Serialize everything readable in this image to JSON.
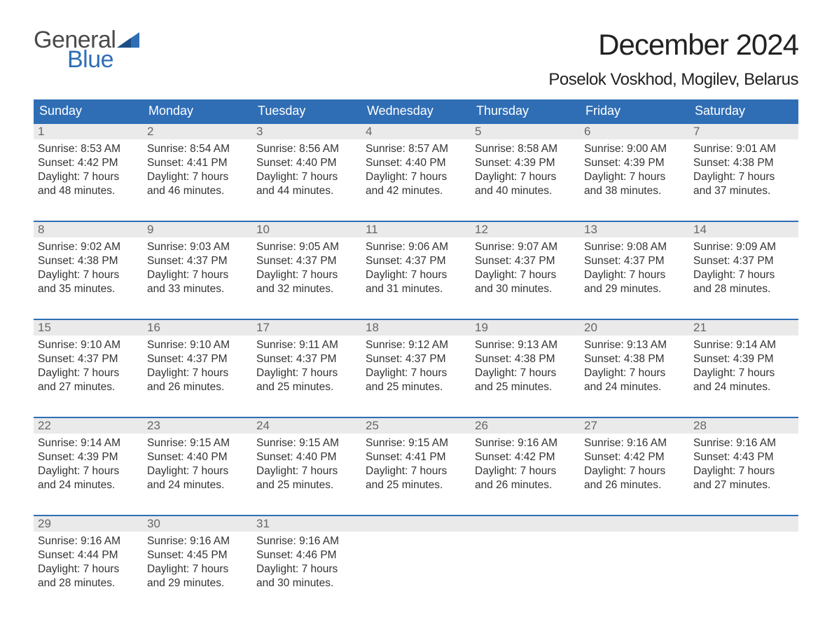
{
  "colors": {
    "brand_blue": "#2f6eb5",
    "header_bg": "#2f6eb5",
    "header_text": "#ffffff",
    "daynum_bg": "#eaeaea",
    "daynum_text": "#666666",
    "body_text": "#333333",
    "page_bg": "#ffffff",
    "logo_gray": "#4a4a4a"
  },
  "typography": {
    "title_fontsize": 42,
    "location_fontsize": 24,
    "dow_fontsize": 18,
    "daynum_fontsize": 17,
    "body_fontsize": 15.5,
    "logo_fontsize": 34
  },
  "logo": {
    "line1": "General",
    "line2": "Blue"
  },
  "title": "December 2024",
  "location": "Poselok Voskhod, Mogilev, Belarus",
  "days_of_week": [
    "Sunday",
    "Monday",
    "Tuesday",
    "Wednesday",
    "Thursday",
    "Friday",
    "Saturday"
  ],
  "labels": {
    "sunrise": "Sunrise:",
    "sunset": "Sunset:",
    "daylight": "Daylight:",
    "hours": "hours",
    "minutes_suffix": "minutes."
  },
  "weeks": [
    [
      {
        "n": "1",
        "sr": "8:53 AM",
        "ss": "4:42 PM",
        "dh": "7",
        "dm": "48"
      },
      {
        "n": "2",
        "sr": "8:54 AM",
        "ss": "4:41 PM",
        "dh": "7",
        "dm": "46"
      },
      {
        "n": "3",
        "sr": "8:56 AM",
        "ss": "4:40 PM",
        "dh": "7",
        "dm": "44"
      },
      {
        "n": "4",
        "sr": "8:57 AM",
        "ss": "4:40 PM",
        "dh": "7",
        "dm": "42"
      },
      {
        "n": "5",
        "sr": "8:58 AM",
        "ss": "4:39 PM",
        "dh": "7",
        "dm": "40"
      },
      {
        "n": "6",
        "sr": "9:00 AM",
        "ss": "4:39 PM",
        "dh": "7",
        "dm": "38"
      },
      {
        "n": "7",
        "sr": "9:01 AM",
        "ss": "4:38 PM",
        "dh": "7",
        "dm": "37"
      }
    ],
    [
      {
        "n": "8",
        "sr": "9:02 AM",
        "ss": "4:38 PM",
        "dh": "7",
        "dm": "35"
      },
      {
        "n": "9",
        "sr": "9:03 AM",
        "ss": "4:37 PM",
        "dh": "7",
        "dm": "33"
      },
      {
        "n": "10",
        "sr": "9:05 AM",
        "ss": "4:37 PM",
        "dh": "7",
        "dm": "32"
      },
      {
        "n": "11",
        "sr": "9:06 AM",
        "ss": "4:37 PM",
        "dh": "7",
        "dm": "31"
      },
      {
        "n": "12",
        "sr": "9:07 AM",
        "ss": "4:37 PM",
        "dh": "7",
        "dm": "30"
      },
      {
        "n": "13",
        "sr": "9:08 AM",
        "ss": "4:37 PM",
        "dh": "7",
        "dm": "29"
      },
      {
        "n": "14",
        "sr": "9:09 AM",
        "ss": "4:37 PM",
        "dh": "7",
        "dm": "28"
      }
    ],
    [
      {
        "n": "15",
        "sr": "9:10 AM",
        "ss": "4:37 PM",
        "dh": "7",
        "dm": "27"
      },
      {
        "n": "16",
        "sr": "9:10 AM",
        "ss": "4:37 PM",
        "dh": "7",
        "dm": "26"
      },
      {
        "n": "17",
        "sr": "9:11 AM",
        "ss": "4:37 PM",
        "dh": "7",
        "dm": "25"
      },
      {
        "n": "18",
        "sr": "9:12 AM",
        "ss": "4:37 PM",
        "dh": "7",
        "dm": "25"
      },
      {
        "n": "19",
        "sr": "9:13 AM",
        "ss": "4:38 PM",
        "dh": "7",
        "dm": "25"
      },
      {
        "n": "20",
        "sr": "9:13 AM",
        "ss": "4:38 PM",
        "dh": "7",
        "dm": "24"
      },
      {
        "n": "21",
        "sr": "9:14 AM",
        "ss": "4:39 PM",
        "dh": "7",
        "dm": "24"
      }
    ],
    [
      {
        "n": "22",
        "sr": "9:14 AM",
        "ss": "4:39 PM",
        "dh": "7",
        "dm": "24"
      },
      {
        "n": "23",
        "sr": "9:15 AM",
        "ss": "4:40 PM",
        "dh": "7",
        "dm": "24"
      },
      {
        "n": "24",
        "sr": "9:15 AM",
        "ss": "4:40 PM",
        "dh": "7",
        "dm": "25"
      },
      {
        "n": "25",
        "sr": "9:15 AM",
        "ss": "4:41 PM",
        "dh": "7",
        "dm": "25"
      },
      {
        "n": "26",
        "sr": "9:16 AM",
        "ss": "4:42 PM",
        "dh": "7",
        "dm": "26"
      },
      {
        "n": "27",
        "sr": "9:16 AM",
        "ss": "4:42 PM",
        "dh": "7",
        "dm": "26"
      },
      {
        "n": "28",
        "sr": "9:16 AM",
        "ss": "4:43 PM",
        "dh": "7",
        "dm": "27"
      }
    ],
    [
      {
        "n": "29",
        "sr": "9:16 AM",
        "ss": "4:44 PM",
        "dh": "7",
        "dm": "28"
      },
      {
        "n": "30",
        "sr": "9:16 AM",
        "ss": "4:45 PM",
        "dh": "7",
        "dm": "29"
      },
      {
        "n": "31",
        "sr": "9:16 AM",
        "ss": "4:46 PM",
        "dh": "7",
        "dm": "30"
      },
      null,
      null,
      null,
      null
    ]
  ]
}
